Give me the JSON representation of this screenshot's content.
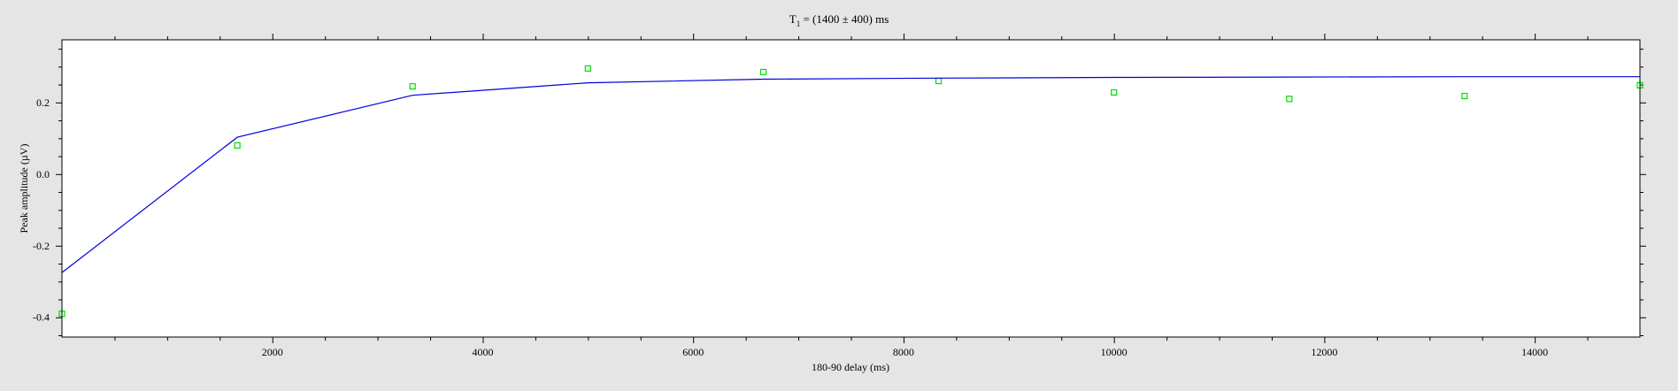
{
  "chart_data": {
    "type": "scatter",
    "title": {
      "prefix": "T",
      "subscript": "1",
      "rest": " = (1400 ± 400) ms"
    },
    "xlabel": "180-90 delay (ms)",
    "ylabel": "Peak amplitude (µV)",
    "xlim": [
      0,
      15000
    ],
    "ylim": [
      -0.455,
      0.375
    ],
    "x_ticks": [
      2000,
      4000,
      6000,
      8000,
      10000,
      12000,
      14000
    ],
    "y_ticks": [
      -0.4,
      -0.2,
      0.0,
      0.2
    ],
    "y_tick_labels": [
      "-0.4",
      "-0.2",
      "0.0",
      "0.2"
    ],
    "grid": false,
    "series": [
      {
        "kind": "points",
        "marker": "open-square",
        "color": "#00dd00",
        "x": [
          0,
          1667,
          3333,
          5000,
          6667,
          8333,
          10000,
          11667,
          13333,
          15000
        ],
        "y": [
          -0.39,
          0.08,
          0.245,
          0.295,
          0.285,
          0.26,
          0.228,
          0.21,
          0.218,
          0.248
        ]
      },
      {
        "kind": "fit",
        "color": "#0000dd",
        "x": [
          0,
          1667,
          3333,
          5000,
          6667,
          8333,
          10000,
          11667,
          13333,
          15000
        ],
        "y": [
          -0.275,
          0.103,
          0.22,
          0.255,
          0.265,
          0.268,
          0.27,
          0.271,
          0.272,
          0.272
        ]
      }
    ]
  }
}
